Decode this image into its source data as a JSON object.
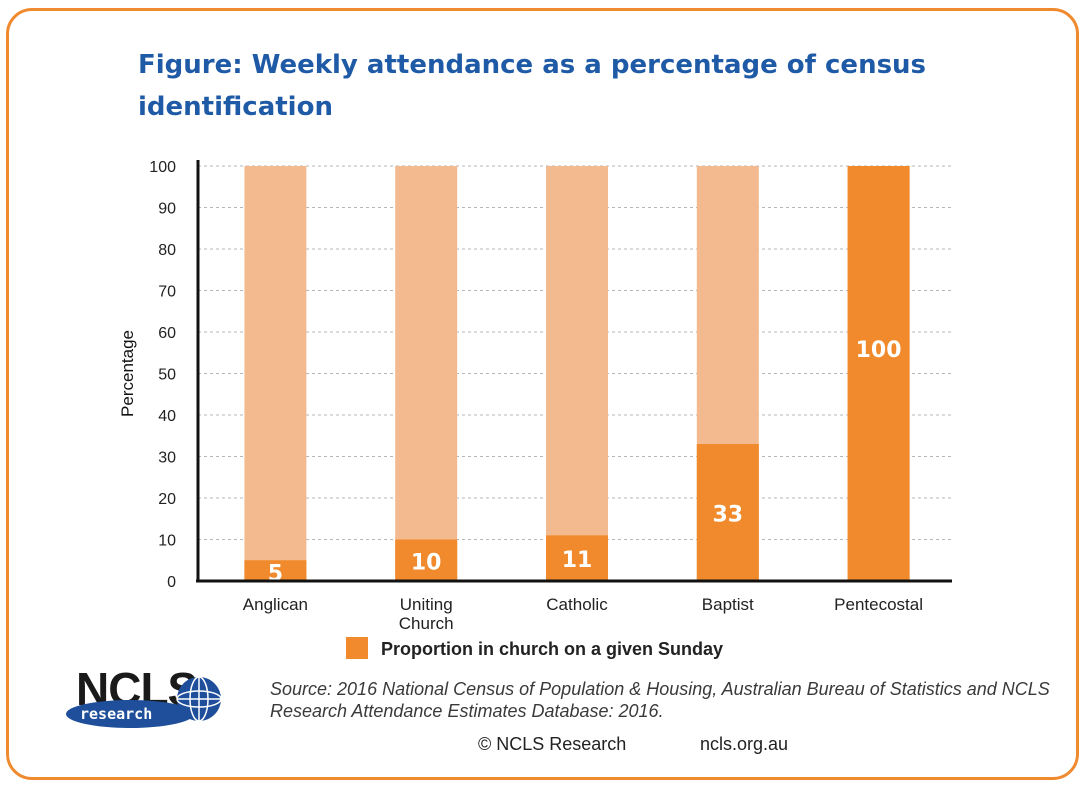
{
  "title": "Figure: Weekly attendance as a percentage of census identification",
  "chart_data": {
    "type": "bar",
    "categories": [
      "Anglican",
      "Uniting Church",
      "Catholic",
      "Baptist",
      "Pentecostal"
    ],
    "category_lines": [
      [
        "Anglican"
      ],
      [
        "Uniting",
        "Church"
      ],
      [
        "Catholic"
      ],
      [
        "Baptist"
      ],
      [
        "Pentecostal"
      ]
    ],
    "series": [
      {
        "name": "Proportion in church on a given Sunday",
        "values": [
          5,
          10,
          11,
          33,
          100
        ]
      }
    ],
    "background_values": [
      100,
      100,
      100,
      100,
      100
    ],
    "data_labels": [
      "5",
      "10",
      "11",
      "33",
      "100"
    ],
    "ylabel": "Percentage",
    "xlabel": "",
    "ylim": [
      0,
      100
    ],
    "yticks": [
      0,
      10,
      20,
      30,
      40,
      50,
      60,
      70,
      80,
      90,
      100
    ],
    "grid": true,
    "legend_position": "bottom",
    "colors": {
      "series": "#f08a2c",
      "background": "#f2ba8e",
      "label": "#ffffff"
    }
  },
  "source_text": "Source: 2016 National Census of Population & Housing, Australian Bureau of Statistics and NCLS Research Attendance Estimates Database: 2016.",
  "footer": {
    "copyright": "© NCLS Research",
    "website": "ncls.org.au"
  },
  "logo": {
    "main": "NCLS",
    "sub": "research",
    "icon": "globe-icon"
  },
  "colors": {
    "frame": "#ef8a2e",
    "title": "#1f5aa6",
    "logo_blue": "#1f4f9a"
  }
}
